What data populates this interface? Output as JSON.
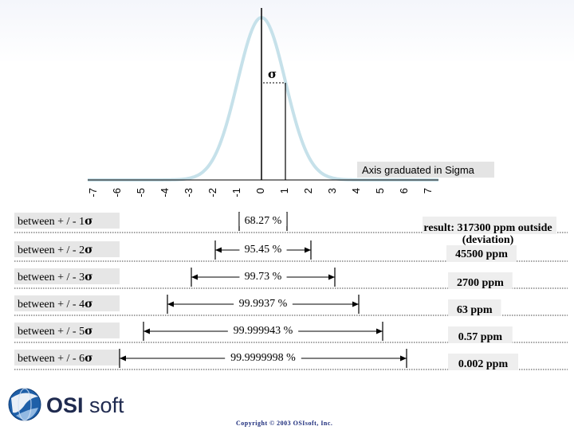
{
  "curve": {
    "sigma_label": "σ",
    "axis_title": "Axis graduated in Sigma",
    "fill": "#ffffff",
    "outline": "#c6e1ea"
  },
  "axis": {
    "ticks": [
      "-7",
      "-6",
      "-5",
      "-4",
      "-3",
      "-2",
      "-1",
      "0",
      "1",
      "2",
      "3",
      "4",
      "5",
      "6",
      "7"
    ]
  },
  "rows": [
    {
      "label": "between + / - 1",
      "sigma": "σ",
      "sigma_mult": 1,
      "percent": "68.27 %",
      "result": [
        "result:  317300  ppm outside",
        "(deviation)"
      ]
    },
    {
      "label": "between  + / - 2",
      "sigma": "σ",
      "sigma_mult": 2,
      "percent": "95.45 %",
      "result": [
        "45500  ppm"
      ]
    },
    {
      "label": "between  + / - 3",
      "sigma": "σ",
      "sigma_mult": 3,
      "percent": "99.73 %",
      "result": [
        "2700  ppm"
      ]
    },
    {
      "label": "between  + / - 4",
      "sigma": "σ",
      "sigma_mult": 4,
      "percent": "99.9937 %",
      "result": [
        "63  ppm"
      ]
    },
    {
      "label": "between  + / - 5",
      "sigma": "σ",
      "sigma_mult": 5,
      "percent": "99.999943 %",
      "result": [
        "0.57  ppm"
      ]
    },
    {
      "label": "between  + / - 6",
      "sigma": "σ",
      "sigma_mult": 6,
      "percent": "99.9999998 %",
      "result": [
        "0.002  ppm"
      ]
    }
  ],
  "logo": {
    "brand": "OSI",
    "suffix": "soft"
  },
  "copyright": "Copyright © 2003 OSIsoft, Inc."
}
